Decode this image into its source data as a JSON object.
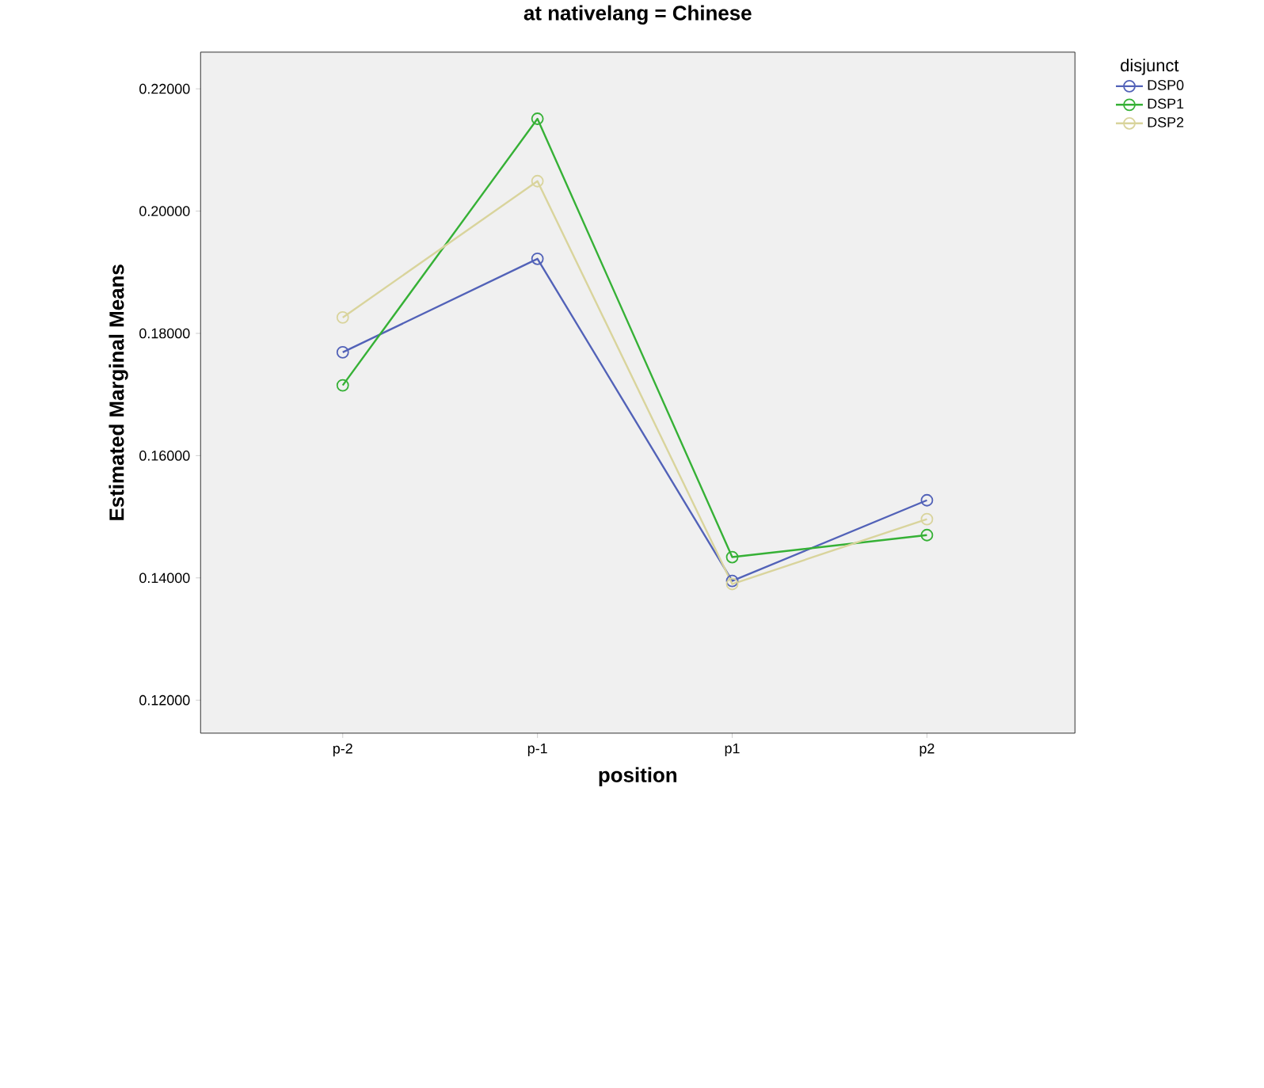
{
  "chart_data": {
    "type": "line",
    "title": "at nativelang = Chinese",
    "xlabel": "position",
    "ylabel": "Estimated Marginal Means",
    "legend_title": "disjunct",
    "categories": [
      "p-2",
      "p-1",
      "p1",
      "p2"
    ],
    "series": [
      {
        "name": "DSP0",
        "color": "#5262b8",
        "values": [
          0.1769,
          0.1922,
          0.1395,
          0.1527
        ]
      },
      {
        "name": "DSP1",
        "color": "#36b136",
        "values": [
          0.1715,
          0.2151,
          0.1434,
          0.147
        ]
      },
      {
        "name": "DSP2",
        "color": "#d9d49c",
        "values": [
          0.1826,
          0.2049,
          0.139,
          0.1496
        ]
      }
    ],
    "ylim": [
      0.1146,
      0.226
    ],
    "yticks": [
      {
        "value": 0.12,
        "label": "0.12000"
      },
      {
        "value": 0.14,
        "label": "0.14000"
      },
      {
        "value": 0.16,
        "label": "0.16000"
      },
      {
        "value": 0.18,
        "label": "0.18000"
      },
      {
        "value": 0.2,
        "label": "0.20000"
      },
      {
        "value": 0.22,
        "label": "0.22000"
      }
    ],
    "legend": "top right",
    "marker": "circle",
    "line_style": "solid",
    "grid": false
  }
}
